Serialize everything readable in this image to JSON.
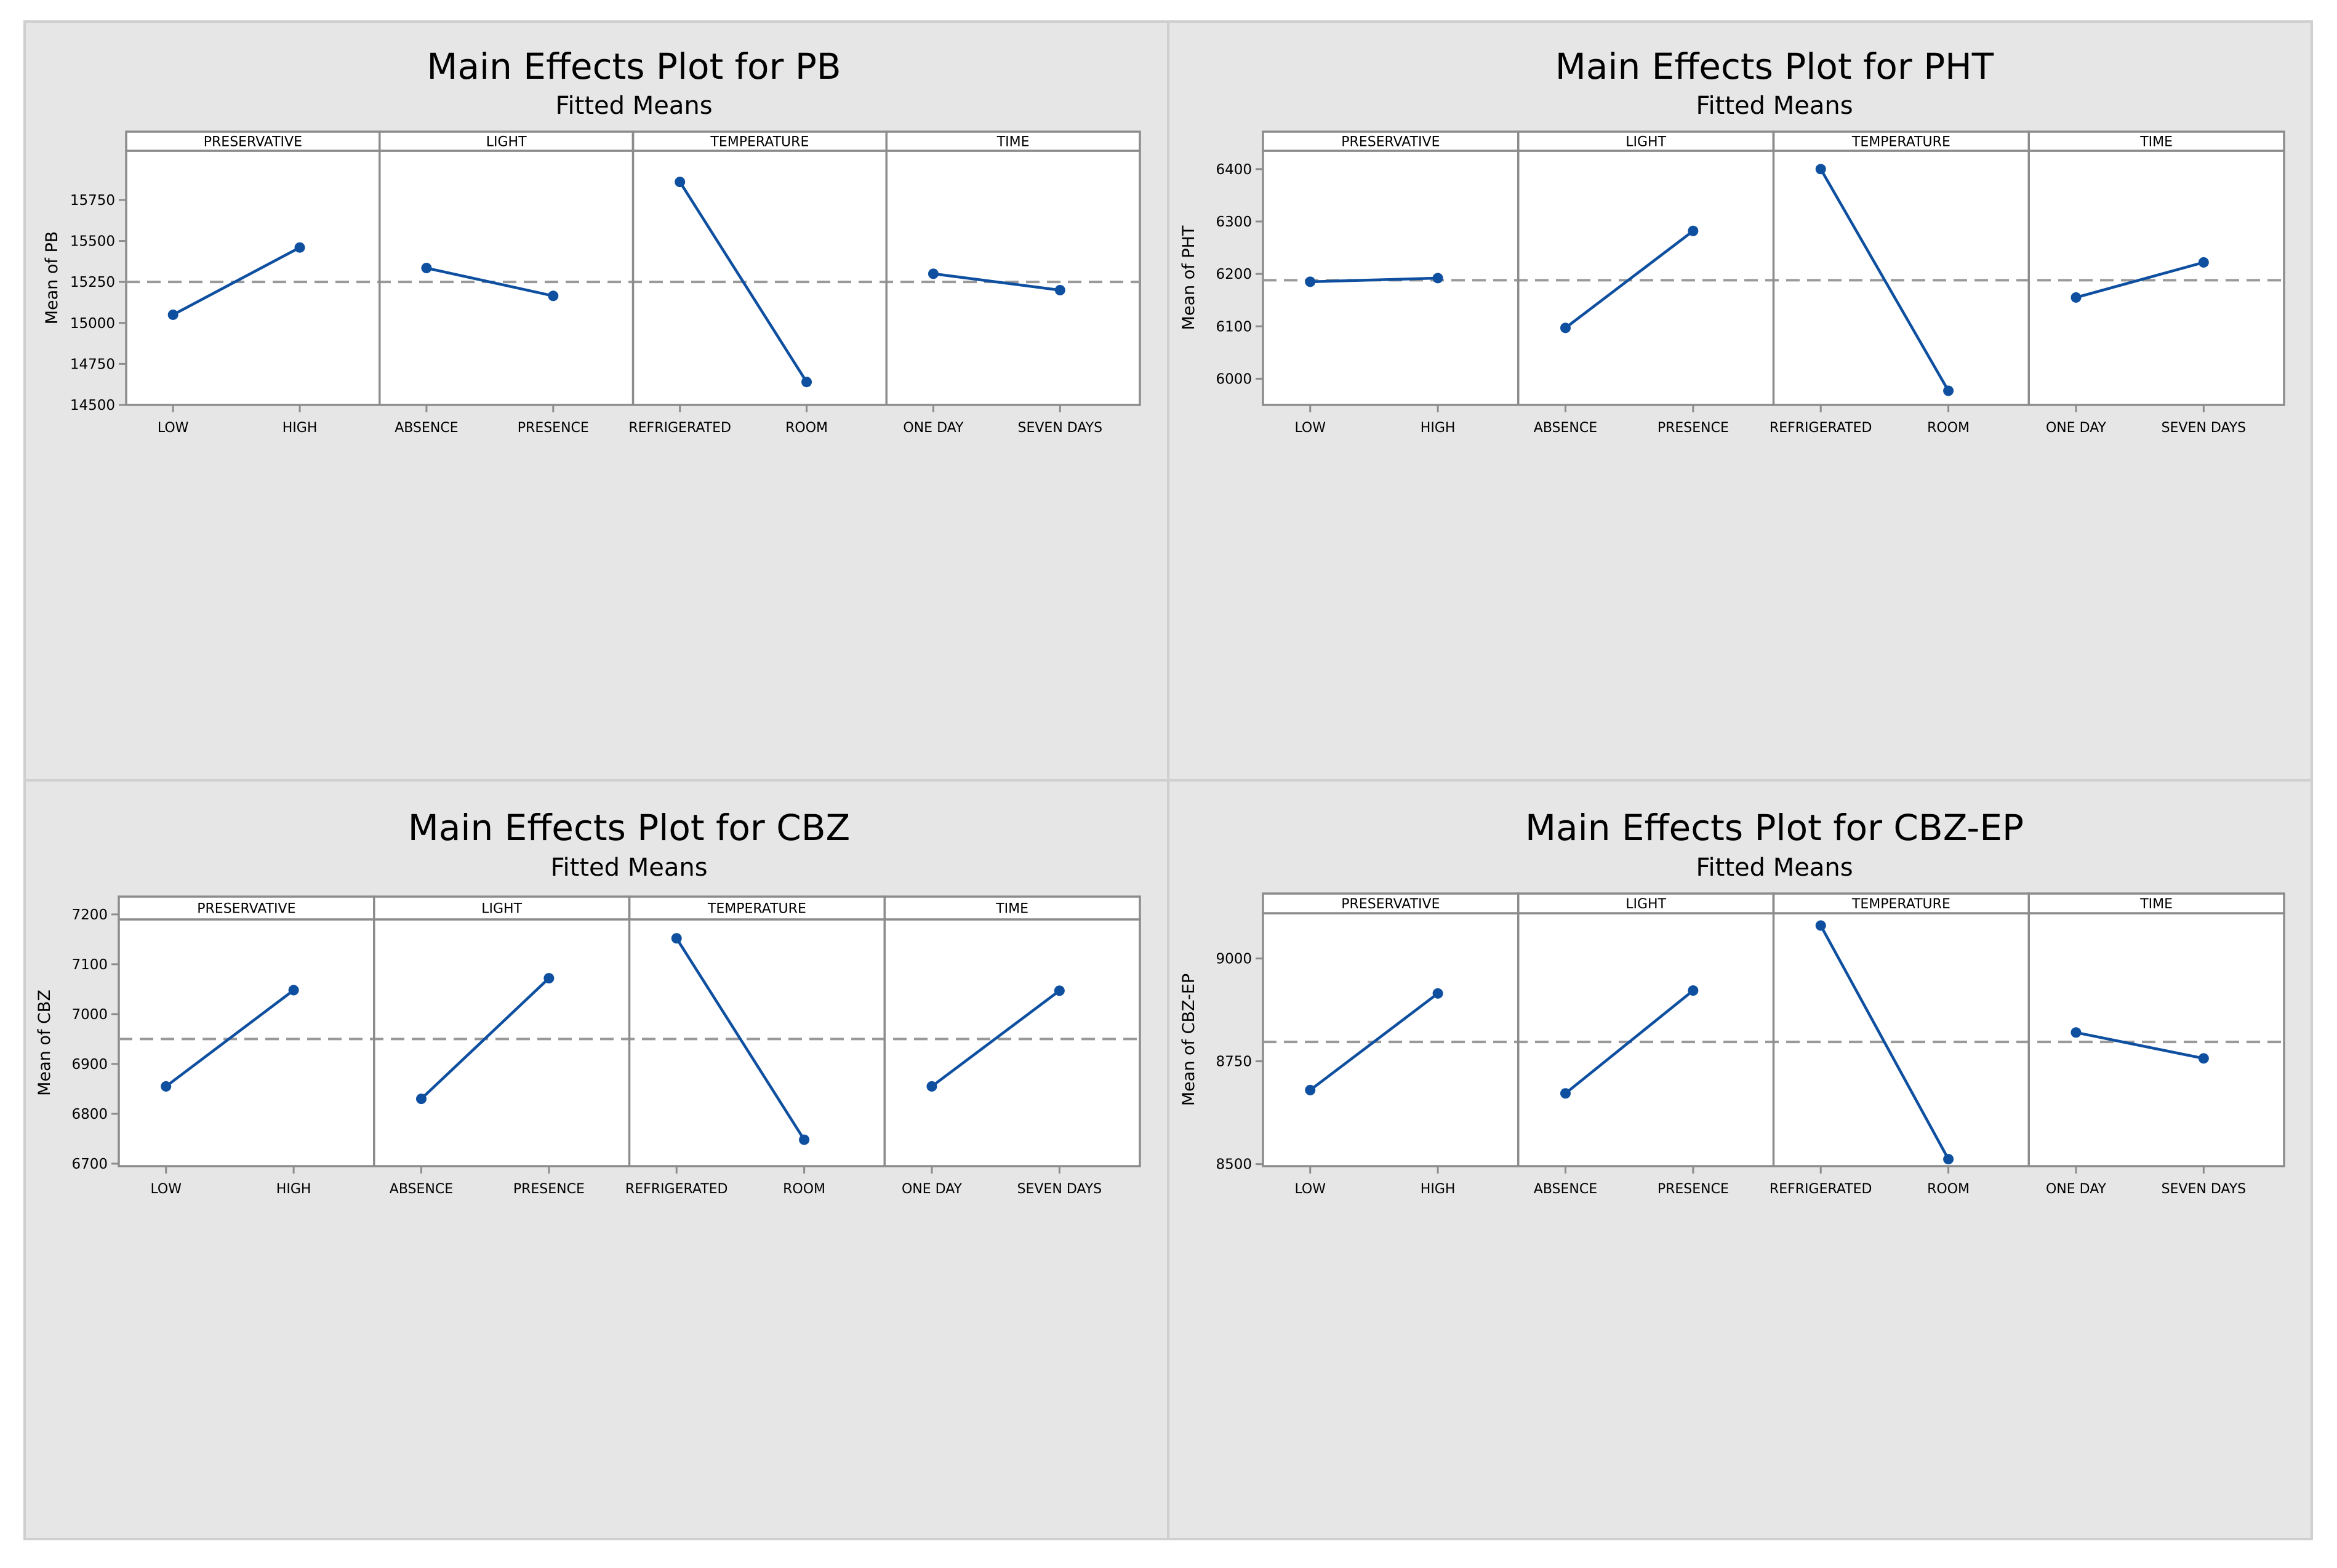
{
  "chart_data": [
    {
      "type": "line",
      "title": "Main Effects Plot for PB",
      "subtitle": "Fitted Means",
      "ylabel": "Mean of PB",
      "ylim": [
        14500,
        16050
      ],
      "yticks": [
        14500,
        14750,
        15000,
        15250,
        15500,
        15750
      ],
      "overall_mean": 15250,
      "factors": [
        {
          "name": "PRESERVATIVE",
          "levels": [
            "LOW",
            "HIGH"
          ],
          "values": [
            15050,
            15460
          ]
        },
        {
          "name": "LIGHT",
          "levels": [
            "ABSENCE",
            "PRESENCE"
          ],
          "values": [
            15335,
            15165
          ]
        },
        {
          "name": "TEMPERATURE",
          "levels": [
            "REFRIGERATED",
            "ROOM"
          ],
          "values": [
            15860,
            14640
          ]
        },
        {
          "name": "TIME",
          "levels": [
            "ONE DAY",
            "SEVEN DAYS"
          ],
          "values": [
            15300,
            15200
          ]
        }
      ]
    },
    {
      "type": "line",
      "title": "Main Effects Plot for PHT",
      "subtitle": "Fitted Means",
      "ylabel": "Mean of PHT",
      "ylim": [
        5950,
        6435
      ],
      "yticks": [
        6000,
        6100,
        6200,
        6300,
        6400
      ],
      "overall_mean": 6188,
      "factors": [
        {
          "name": "PRESERVATIVE",
          "levels": [
            "LOW",
            "HIGH"
          ],
          "values": [
            6185,
            6192
          ]
        },
        {
          "name": "LIGHT",
          "levels": [
            "ABSENCE",
            "PRESENCE"
          ],
          "values": [
            6097,
            6282
          ]
        },
        {
          "name": "TEMPERATURE",
          "levels": [
            "REFRIGERATED",
            "ROOM"
          ],
          "values": [
            6400,
            5977
          ]
        },
        {
          "name": "TIME",
          "levels": [
            "ONE DAY",
            "SEVEN DAYS"
          ],
          "values": [
            6155,
            6222
          ]
        }
      ]
    },
    {
      "type": "line",
      "title": "Main Effects Plot for CBZ",
      "subtitle": "Fitted Means",
      "ylabel": "Mean of CBZ",
      "ylim": [
        6695,
        7190
      ],
      "yticks": [
        6700,
        6800,
        6900,
        7000,
        7100,
        7200
      ],
      "overall_mean": 6950,
      "factors": [
        {
          "name": "PRESERVATIVE",
          "levels": [
            "LOW",
            "HIGH"
          ],
          "values": [
            6855,
            7048
          ]
        },
        {
          "name": "LIGHT",
          "levels": [
            "ABSENCE",
            "PRESENCE"
          ],
          "values": [
            6830,
            7072
          ]
        },
        {
          "name": "TEMPERATURE",
          "levels": [
            "REFRIGERATED",
            "ROOM"
          ],
          "values": [
            7152,
            6748
          ]
        },
        {
          "name": "TIME",
          "levels": [
            "ONE DAY",
            "SEVEN DAYS"
          ],
          "values": [
            6855,
            7047
          ]
        }
      ]
    },
    {
      "type": "line",
      "title": "Main Effects Plot for CBZ-EP",
      "subtitle": "Fitted Means",
      "ylabel": "Mean of CBZ-EP",
      "ylim": [
        8495,
        9110
      ],
      "yticks": [
        8500,
        8750,
        9000
      ],
      "overall_mean": 8797,
      "factors": [
        {
          "name": "PRESERVATIVE",
          "levels": [
            "LOW",
            "HIGH"
          ],
          "values": [
            8680,
            8915
          ]
        },
        {
          "name": "LIGHT",
          "levels": [
            "ABSENCE",
            "PRESENCE"
          ],
          "values": [
            8672,
            8922
          ]
        },
        {
          "name": "TEMPERATURE",
          "levels": [
            "REFRIGERATED",
            "ROOM"
          ],
          "values": [
            9080,
            8512
          ]
        },
        {
          "name": "TIME",
          "levels": [
            "ONE DAY",
            "SEVEN DAYS"
          ],
          "values": [
            8820,
            8757
          ]
        }
      ]
    }
  ]
}
